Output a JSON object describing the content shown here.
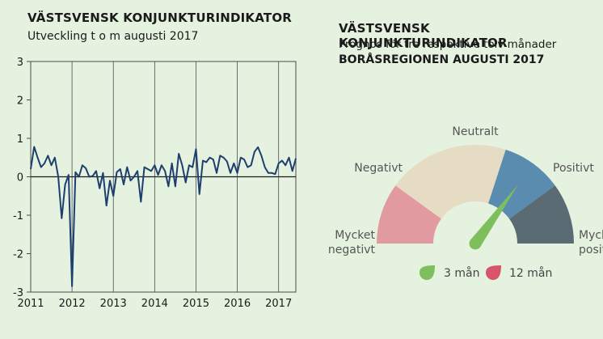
{
  "left_chart": {
    "title": "VÄSTSVENSK KONJUNKTURINDIKATOR",
    "subtitle": "Utveckling t o m augusti 2017"
  },
  "right_chart": {
    "title": "VÄSTSVENSK KONJUNKTURINDIKATOR",
    "subtitle": "Prognos för tre respektive tolv månader",
    "region": "BORÅSREGIONEN AUGUSTI 2017"
  },
  "chart_data": [
    {
      "type": "line",
      "title": "VÄSTSVENSK KONJUNKTURINDIKATOR",
      "subtitle": "Utveckling t o m augusti 2017",
      "x_ticks": [
        "2011",
        "2012",
        "2013",
        "2014",
        "2015",
        "2016",
        "2017"
      ],
      "y_ticks": [
        "3",
        "2",
        "1",
        "0",
        "-1",
        "-2",
        "-3"
      ],
      "ylim": [
        -3,
        3
      ],
      "x_start": "2011-01",
      "x_end": "2017-08",
      "grid": "vertical at years",
      "line_color": "#1d3f6e",
      "series": [
        {
          "values": [
            0.2,
            0.78,
            0.5,
            0.25,
            0.35,
            0.55,
            0.3,
            0.5,
            0.0,
            -1.08,
            -0.2,
            0.05,
            -2.85,
            0.12,
            0.0,
            0.3,
            0.22,
            0.0,
            0.02,
            0.15,
            -0.3,
            0.1,
            -0.75,
            -0.1,
            -0.5,
            0.12,
            0.2,
            -0.2,
            0.25,
            -0.1,
            0.0,
            0.15,
            -0.65,
            0.25,
            0.2,
            0.15,
            0.3,
            0.05,
            0.3,
            0.15,
            -0.25,
            0.35,
            -0.25,
            0.6,
            0.3,
            -0.15,
            0.3,
            0.25,
            0.72,
            -0.45,
            0.42,
            0.38,
            0.5,
            0.45,
            0.1,
            0.55,
            0.5,
            0.4,
            0.1,
            0.35,
            0.1,
            0.5,
            0.45,
            0.25,
            0.3,
            0.65,
            0.77,
            0.55,
            0.25,
            0.1,
            0.1,
            0.07,
            0.35,
            0.42,
            0.3,
            0.5,
            0.15,
            0.48
          ]
        }
      ]
    },
    {
      "type": "gauge",
      "title": "VÄSTSVENSK KONJUNKTURINDIKATOR",
      "subtitle": "Prognos för tre respektive tolv månader",
      "region": "BORÅSREGIONEN AUGUSTI 2017",
      "segments": [
        {
          "label": "Mycket negativt",
          "color": "#e09aa0"
        },
        {
          "label": "Negativt",
          "color": "#e6dcc3"
        },
        {
          "label": "Neutralt",
          "color": "#e6dcc3"
        },
        {
          "label": "Positivt",
          "color": "#5a8cb0"
        },
        {
          "label": "Mycket positivt",
          "color": "#5a6b73"
        }
      ],
      "labels": {
        "neutral": "Neutralt",
        "negative": "Negativt",
        "positive": "Positivt",
        "very_negative": [
          "Mycket",
          "negativt"
        ],
        "very_positive": [
          "Mycket",
          "positivt"
        ]
      },
      "scale": [
        -2,
        2
      ],
      "needles": [
        {
          "name": "3 mån",
          "value": 0.8,
          "color": "#7cbf5c"
        },
        {
          "name": "12 mån",
          "value": 0.8,
          "color": "#d9546a"
        }
      ],
      "legend": [
        "3 mån",
        "12 mån"
      ],
      "legend_colors": [
        "#7cbf5c",
        "#d9546a"
      ]
    }
  ]
}
